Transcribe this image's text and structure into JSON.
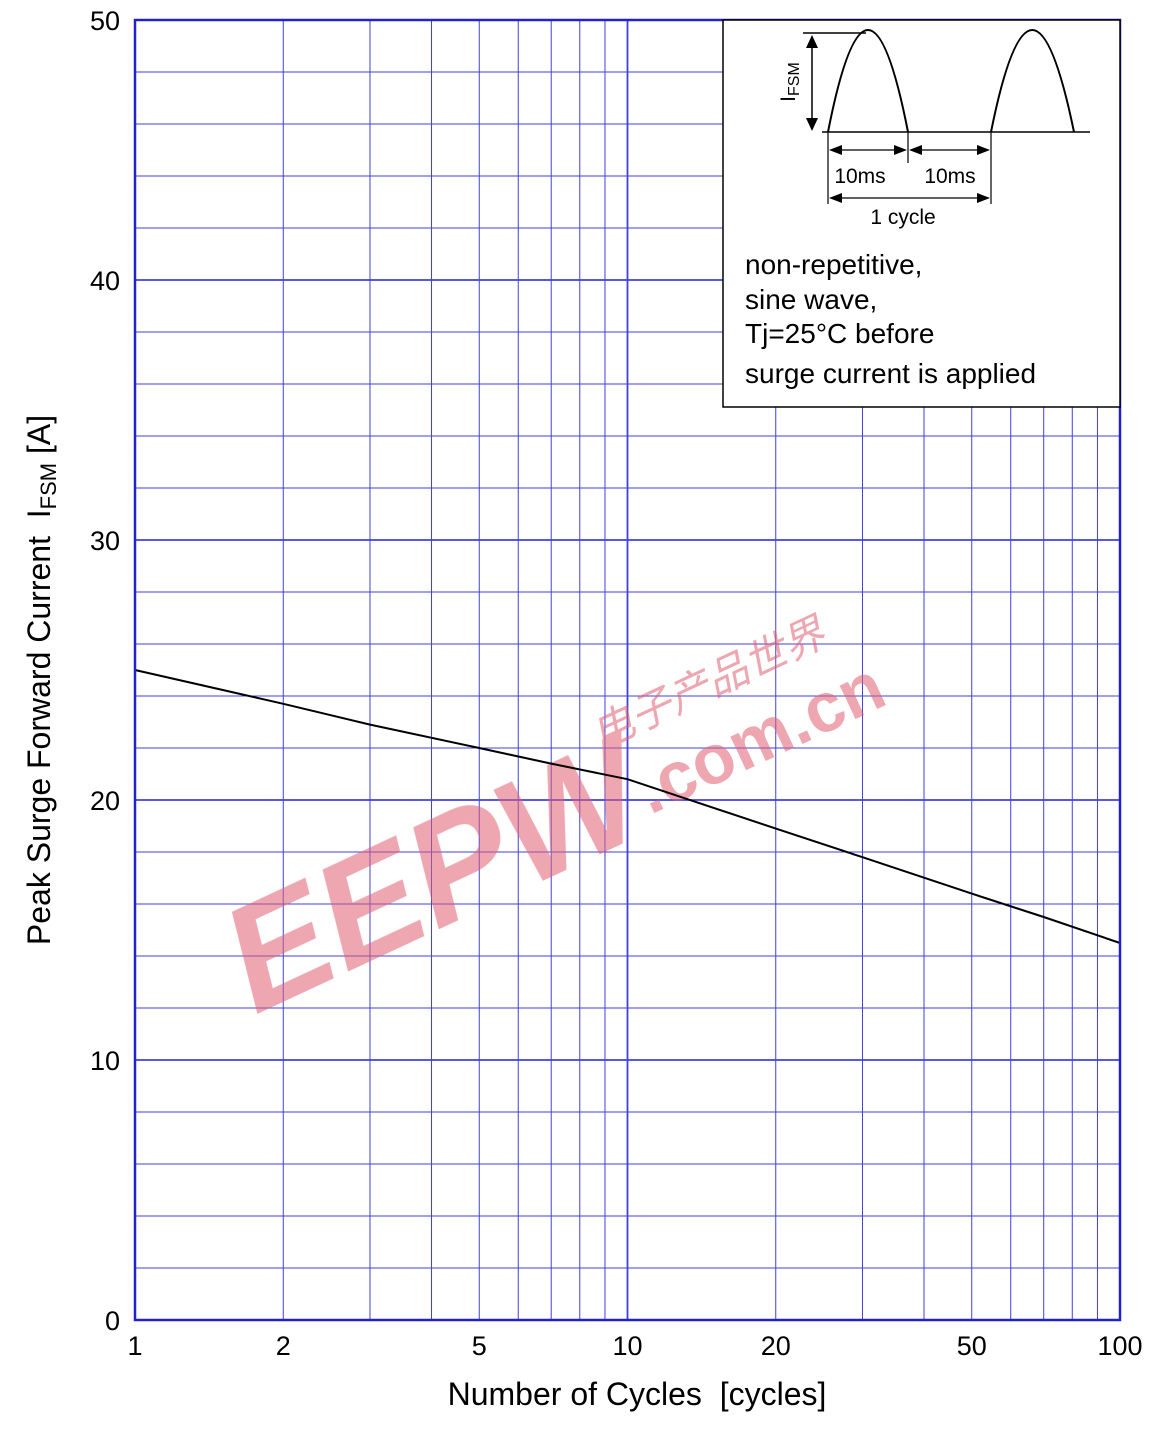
{
  "chart_data": {
    "type": "line",
    "x_scale": "log",
    "xlim": [
      1,
      100
    ],
    "ylim": [
      0,
      50
    ],
    "grid": true,
    "xlabel": "Number of Cycles  [cycles]",
    "ylabel": {
      "main": "Peak Surge Forward Current  I",
      "sub": "FSM",
      "unit": " [A]"
    },
    "x_ticks": [
      1,
      2,
      5,
      10,
      20,
      50,
      100
    ],
    "y_ticks": [
      0,
      10,
      20,
      30,
      40,
      50
    ],
    "series": [
      {
        "x": [
          1,
          2,
          3,
          5,
          7,
          10,
          20,
          30,
          50,
          70,
          100
        ],
        "y": [
          25.0,
          23.7,
          22.9,
          22.0,
          21.4,
          20.8,
          18.9,
          17.8,
          16.4,
          15.5,
          14.5
        ]
      }
    ],
    "inset": {
      "waveform_label_main": "I",
      "waveform_label_sub": "FSM",
      "half_period_label_1": "10ms",
      "half_period_label_2": "10ms",
      "cycle_label": "1 cycle",
      "notes": [
        "non-repetitive,",
        "sine wave,",
        "Tj=25°C before",
        "surge current is applied"
      ]
    },
    "watermark": {
      "logo_text": "EEPW",
      "domain_text": ".com.cn",
      "chinese_text": "电子产品世界"
    }
  },
  "colors": {
    "grid": "#4040e0",
    "frame": "#2222cc",
    "curve": "#000000",
    "watermark": "#e06070"
  }
}
